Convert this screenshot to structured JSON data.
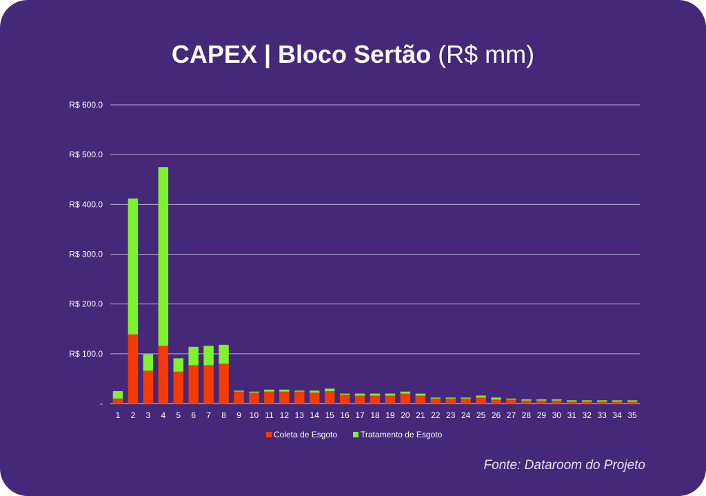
{
  "title": {
    "bold": "CAPEX | Bloco Sertão",
    "unit": "(R$ mm)"
  },
  "source": "Fonte: Dataroom do Projeto",
  "chart_data": {
    "type": "bar",
    "stacked": true,
    "title": "CAPEX | Bloco Sertão (R$ mm)",
    "xlabel": "",
    "ylabel": "",
    "ylim": [
      0,
      600
    ],
    "yticks": [
      0,
      100,
      200,
      300,
      400,
      500,
      600
    ],
    "ytick_labels": [
      "-",
      "R$ 100.0",
      "R$ 200.0",
      "R$ 300.0",
      "R$ 400.0",
      "R$ 500.0",
      "R$ 600.0"
    ],
    "grid": true,
    "legend_position": "bottom",
    "categories": [
      "1",
      "2",
      "3",
      "4",
      "5",
      "6",
      "7",
      "8",
      "9",
      "10",
      "11",
      "12",
      "13",
      "14",
      "15",
      "16",
      "17",
      "18",
      "19",
      "20",
      "21",
      "22",
      "23",
      "24",
      "25",
      "26",
      "27",
      "28",
      "29",
      "30",
      "31",
      "32",
      "33",
      "34",
      "35"
    ],
    "series": [
      {
        "name": "Coleta de Esgoto",
        "color": "#f53b00",
        "values": [
          10,
          139,
          66,
          116,
          64,
          77,
          77,
          80,
          24,
          22,
          24,
          24,
          24,
          22,
          25,
          18,
          16,
          16,
          16,
          20,
          16,
          10,
          10,
          10,
          12,
          8,
          8,
          6,
          6,
          6,
          4,
          4,
          4,
          4,
          4
        ]
      },
      {
        "name": "Tratamento de Esgoto",
        "color": "#7ef22e",
        "values": [
          15,
          273,
          33,
          359,
          27,
          37,
          39,
          38,
          2,
          2,
          4,
          4,
          2,
          4,
          5,
          2,
          4,
          4,
          4,
          4,
          4,
          2,
          2,
          2,
          4,
          4,
          2,
          2.5,
          2.5,
          2.5,
          2.5,
          2.5,
          2.5,
          2.5,
          2.5
        ]
      }
    ]
  }
}
